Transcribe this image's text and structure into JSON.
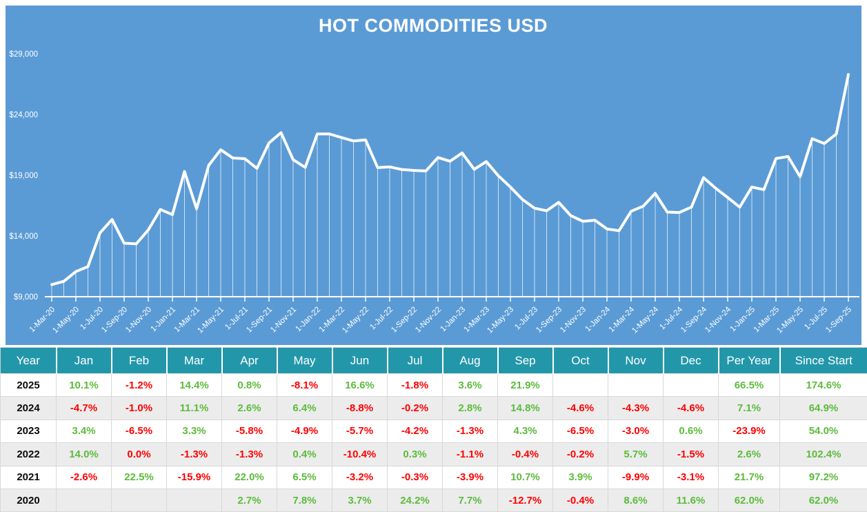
{
  "title": "HOT COMMODITIES USD",
  "colors": {
    "chart_bg": "#5B9BD5",
    "header_bg": "#2397AA",
    "positive": "#5CBB3C",
    "negative": "#FF0000",
    "row_alt": "#ECECEC",
    "line": "#FFFFFF"
  },
  "chart_data": {
    "type": "line",
    "title": "HOT COMMODITIES USD",
    "ylim": [
      9000,
      29000
    ],
    "y_tick_labels": [
      "$9,000",
      "$14,000",
      "$19,000",
      "$24,000",
      "$29,000"
    ],
    "y_tick_values": [
      9000,
      14000,
      19000,
      24000,
      29000
    ],
    "x_tick_labels": [
      "1-Mar-20",
      "1-May-20",
      "1-Jul-20",
      "1-Sep-20",
      "1-Nov-20",
      "1-Jan-21",
      "1-Mar-21",
      "1-May-21",
      "1-Jul-21",
      "1-Sep-21",
      "1-Nov-21",
      "1-Jan-22",
      "1-Mar-22",
      "1-May-22",
      "1-Jul-22",
      "1-Sep-22",
      "1-Nov-22",
      "1-Jan-23",
      "1-Mar-23",
      "1-May-23",
      "1-Jul-23",
      "1-Sep-23",
      "1-Nov-23",
      "1-Jan-24",
      "1-Mar-24",
      "1-May-24",
      "1-Jul-24",
      "1-Sep-24",
      "1-Nov-24",
      "1-Jan-25",
      "1-Mar-25",
      "1-May-25",
      "1-Jul-25",
      "1-Sep-25"
    ],
    "x": [
      "Mar-20",
      "Apr-20",
      "May-20",
      "Jun-20",
      "Jul-20",
      "Aug-20",
      "Sep-20",
      "Oct-20",
      "Nov-20",
      "Dec-20",
      "Jan-21",
      "Feb-21",
      "Mar-21",
      "Apr-21",
      "May-21",
      "Jun-21",
      "Jul-21",
      "Aug-21",
      "Sep-21",
      "Oct-21",
      "Nov-21",
      "Dec-21",
      "Jan-22",
      "Feb-22",
      "Mar-22",
      "Apr-22",
      "May-22",
      "Jun-22",
      "Jul-22",
      "Aug-22",
      "Sep-22",
      "Oct-22",
      "Nov-22",
      "Dec-22",
      "Jan-23",
      "Feb-23",
      "Mar-23",
      "Apr-23",
      "May-23",
      "Jun-23",
      "Jul-23",
      "Aug-23",
      "Sep-23",
      "Oct-23",
      "Nov-23",
      "Dec-23",
      "Jan-24",
      "Feb-24",
      "Mar-24",
      "Apr-24",
      "May-24",
      "Jun-24",
      "Jul-24",
      "Aug-24",
      "Sep-24",
      "Oct-24",
      "Nov-24",
      "Dec-24",
      "Jan-25",
      "Feb-25",
      "Mar-25",
      "Apr-25",
      "May-25",
      "Jun-25",
      "Jul-25",
      "Aug-25",
      "Sep-25"
    ],
    "values": [
      10000,
      10270,
      11071,
      11481,
      14259,
      15357,
      13407,
      13353,
      14501,
      16183,
      15762,
      19309,
      16239,
      19811,
      21099,
      20424,
      20363,
      19569,
      21663,
      22508,
      20280,
      19651,
      22402,
      22402,
      22111,
      21824,
      21911,
      19632,
      19691,
      19474,
      19396,
      19358,
      20461,
      20154,
      20839,
      19485,
      20128,
      18960,
      18031,
      17003,
      16289,
      16077,
      16768,
      15678,
      15208,
      15299,
      14580,
      14434,
      16036,
      16453,
      17506,
      15966,
      15934,
      16380,
      18804,
      17939,
      17168,
      16378,
      18032,
      17816,
      20381,
      20544,
      18880,
      22014,
      21618,
      22396,
      27301
    ],
    "grid": "off",
    "legend": "none"
  },
  "table": {
    "columns": [
      "Year",
      "Jan",
      "Feb",
      "Mar",
      "Apr",
      "May",
      "Jun",
      "Jul",
      "Aug",
      "Sep",
      "Oct",
      "Nov",
      "Dec",
      "Per Year",
      "Since Start"
    ],
    "rows": [
      {
        "year": "2025",
        "values": [
          "10.1%",
          "-1.2%",
          "14.4%",
          "0.8%",
          "-8.1%",
          "16.6%",
          "-1.8%",
          "3.6%",
          "21.9%",
          "",
          "",
          "",
          "66.5%",
          "174.6%"
        ]
      },
      {
        "year": "2024",
        "values": [
          "-4.7%",
          "-1.0%",
          "11.1%",
          "2.6%",
          "6.4%",
          "-8.8%",
          "-0.2%",
          "2.8%",
          "14.8%",
          "-4.6%",
          "-4.3%",
          "-4.6%",
          "7.1%",
          "64.9%"
        ]
      },
      {
        "year": "2023",
        "values": [
          "3.4%",
          "-6.5%",
          "3.3%",
          "-5.8%",
          "-4.9%",
          "-5.7%",
          "-4.2%",
          "-1.3%",
          "4.3%",
          "-6.5%",
          "-3.0%",
          "0.6%",
          "-23.9%",
          "54.0%"
        ]
      },
      {
        "year": "2022",
        "values": [
          "14.0%",
          "0.0%",
          "-1.3%",
          "-1.3%",
          "0.4%",
          "-10.4%",
          "0.3%",
          "-1.1%",
          "-0.4%",
          "-0.2%",
          "5.7%",
          "-1.5%",
          "2.6%",
          "102.4%"
        ]
      },
      {
        "year": "2021",
        "values": [
          "-2.6%",
          "22.5%",
          "-15.9%",
          "22.0%",
          "6.5%",
          "-3.2%",
          "-0.3%",
          "-3.9%",
          "10.7%",
          "3.9%",
          "-9.9%",
          "-3.1%",
          "21.7%",
          "97.2%"
        ]
      },
      {
        "year": "2020",
        "values": [
          "",
          "",
          "",
          "2.7%",
          "7.8%",
          "3.7%",
          "24.2%",
          "7.7%",
          "-12.7%",
          "-0.4%",
          "8.6%",
          "11.6%",
          "62.0%",
          "62.0%"
        ]
      }
    ]
  }
}
